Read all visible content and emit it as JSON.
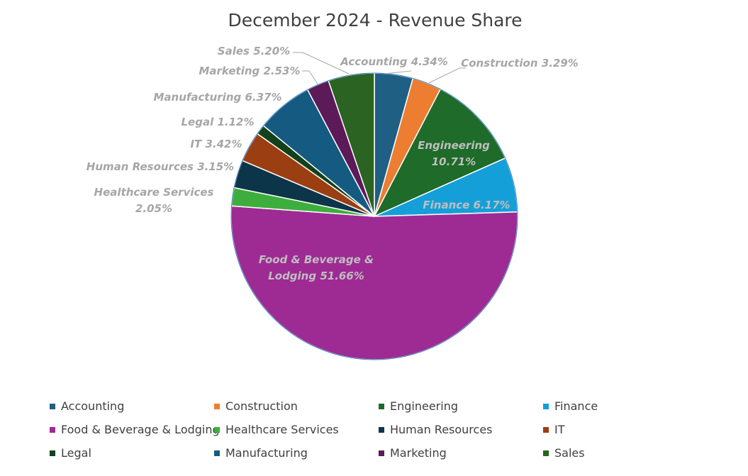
{
  "chart_data": {
    "type": "pie",
    "title": "December 2024 - Revenue Share",
    "legend_position": "bottom",
    "slices": [
      {
        "name": "Accounting",
        "value": 4.34,
        "label": "Accounting 4.34%",
        "color": "#1f5f84",
        "label_position": "outside"
      },
      {
        "name": "Construction",
        "value": 3.29,
        "label": "Construction 3.29%",
        "color": "#ed7d31",
        "label_position": "outside"
      },
      {
        "name": "Engineering",
        "value": 10.71,
        "label": "Engineering\n10.71%",
        "color": "#1e6b2a",
        "label_position": "inside"
      },
      {
        "name": "Finance",
        "value": 6.17,
        "label": "Finance 6.17%",
        "color": "#159fd9",
        "label_position": "inside"
      },
      {
        "name": "Food & Beverage & Lodging",
        "value": 51.66,
        "label": "Food & Beverage &\nLodging 51.66%",
        "color": "#9e2b94",
        "label_position": "inside"
      },
      {
        "name": "Healthcare Services",
        "value": 2.05,
        "label": "Healthcare Services\n2.05%",
        "color": "#3dae3d",
        "label_position": "outside"
      },
      {
        "name": "Human Resources",
        "value": 3.15,
        "label": "Human Resources  3.15%",
        "color": "#0d3549",
        "label_position": "outside"
      },
      {
        "name": "IT",
        "value": 3.42,
        "label": "IT 3.42%",
        "color": "#9b3e12",
        "label_position": "outside"
      },
      {
        "name": "Legal",
        "value": 1.12,
        "label": "Legal 1.12%",
        "color": "#13411a",
        "label_position": "outside"
      },
      {
        "name": "Manufacturing",
        "value": 6.37,
        "label": "Manufacturing 6.37%",
        "color": "#155a80",
        "label_position": "outside"
      },
      {
        "name": "Marketing",
        "value": 2.53,
        "label": "Marketing 2.53%",
        "color": "#5c1a58",
        "label_position": "outside"
      },
      {
        "name": "Sales",
        "value": 5.2,
        "label": "Sales 5.20%",
        "color": "#2a6322",
        "label_position": "outside"
      }
    ],
    "legend": [
      {
        "name": "Accounting",
        "color": "#1f5f84"
      },
      {
        "name": "Construction",
        "color": "#ed7d31"
      },
      {
        "name": "Engineering",
        "color": "#1e6b2a"
      },
      {
        "name": "Finance",
        "color": "#159fd9"
      },
      {
        "name": "Food & Beverage & Lodging",
        "color": "#9e2b94"
      },
      {
        "name": "Healthcare Services",
        "color": "#3dae3d"
      },
      {
        "name": "Human Resources",
        "color": "#0d3549"
      },
      {
        "name": "IT",
        "color": "#9b3e12"
      },
      {
        "name": "Legal",
        "color": "#13411a"
      },
      {
        "name": "Manufacturing",
        "color": "#155a80"
      },
      {
        "name": "Marketing",
        "color": "#5c1a58"
      },
      {
        "name": "Sales",
        "color": "#2a6322"
      }
    ]
  }
}
